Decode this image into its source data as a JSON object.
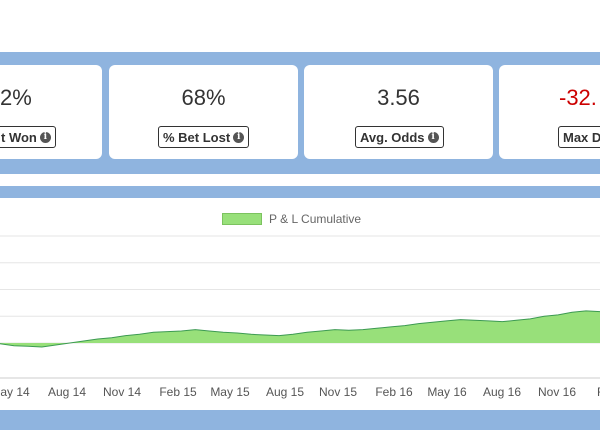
{
  "stats": [
    {
      "value": "2%",
      "label": "t Won",
      "negative": false
    },
    {
      "value": "68%",
      "label": "% Bet Lost",
      "negative": false
    },
    {
      "value": "3.56",
      "label": "Avg. Odds",
      "negative": false
    },
    {
      "value": "-32.",
      "label": "Max D",
      "negative": true
    }
  ],
  "info_icon": "info-icon",
  "colors": {
    "band": "#8fb4df",
    "fill": "#98e07a",
    "line": "#3c9a52",
    "negative": "#cc0000"
  },
  "chart_data": {
    "type": "area",
    "series": [
      {
        "name": "P & L Cumulative",
        "values": [
          -1,
          -4,
          -5,
          -6,
          -3,
          0,
          3,
          6,
          8,
          11,
          13,
          16,
          17,
          18,
          20,
          18,
          16,
          15,
          13,
          12,
          11,
          13,
          16,
          18,
          20,
          19,
          20,
          22,
          24,
          26,
          29,
          31,
          33,
          35,
          34,
          33,
          32,
          34,
          36,
          40,
          42,
          46,
          48,
          47
        ]
      },
      {
        "name": "",
        "values": []
      }
    ],
    "x_tick_labels": [
      "ay 14",
      "Aug 14",
      "Nov 14",
      "Feb 15",
      "May 15",
      "Aug 15",
      "Nov 15",
      "Feb 16",
      "May 16",
      "Aug 16",
      "Nov 16",
      "F"
    ],
    "ylim": [
      -40,
      160
    ],
    "grid": true,
    "legend": "top-center"
  }
}
